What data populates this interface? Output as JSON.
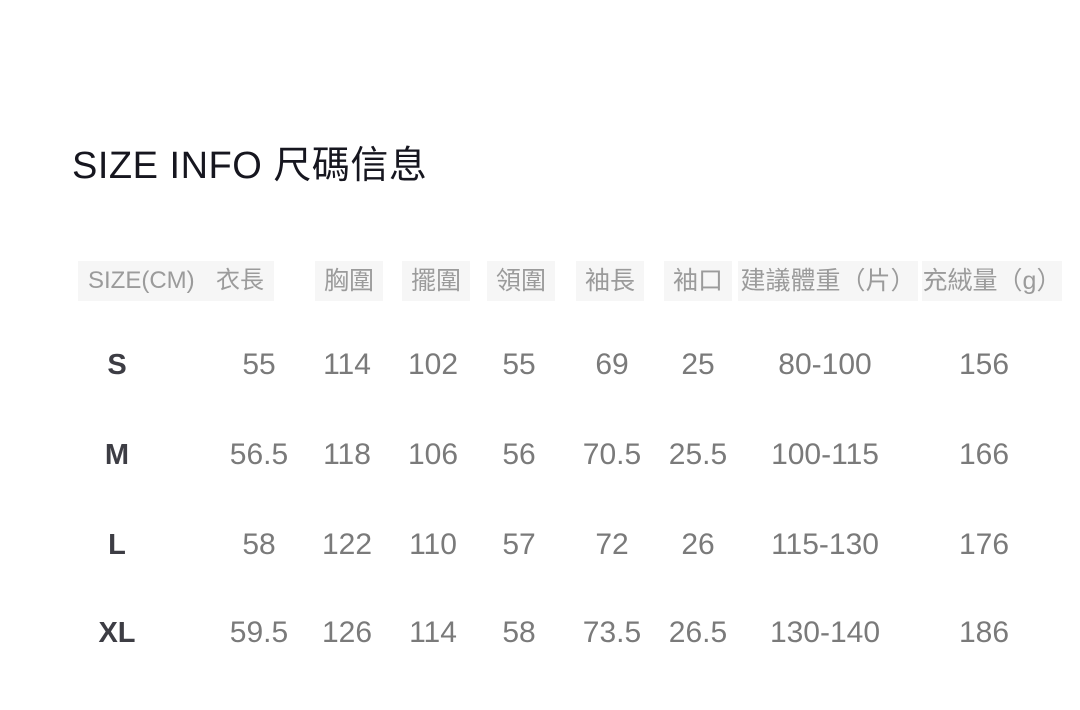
{
  "title": "SIZE INFO 尺碼信息",
  "size_table": {
    "unit_header": "SIZE(CM)",
    "columns": {
      "garment_length": "衣長",
      "chest": "胸圍",
      "hem": "擺圍",
      "collar": "領圍",
      "sleeve_length": "袖長",
      "cuff": "袖口",
      "suggested_weight": "建議體重（片）",
      "down_fill": "充絨量（g）"
    },
    "rows": [
      {
        "size": "S",
        "values": [
          "55",
          "114",
          "102",
          "55",
          "69",
          "25",
          "80-100",
          "156"
        ]
      },
      {
        "size": "M",
        "values": [
          "56.5",
          "118",
          "106",
          "56",
          "70.5",
          "25.5",
          "100-115",
          "166"
        ]
      },
      {
        "size": "L",
        "values": [
          "58",
          "122",
          "110",
          "57",
          "72",
          "26",
          "115-130",
          "176"
        ]
      },
      {
        "size": "XL",
        "values": [
          "59.5",
          "126",
          "114",
          "58",
          "73.5",
          "26.5",
          "130-140",
          "186"
        ]
      }
    ]
  },
  "colors": {
    "title_text": "#16161f",
    "header_text": "#9b9b9b",
    "header_background": "#f6f6f6",
    "size_label_text": "#3d3d44",
    "value_text": "#7a7a7a",
    "page_background": "#ffffff"
  }
}
